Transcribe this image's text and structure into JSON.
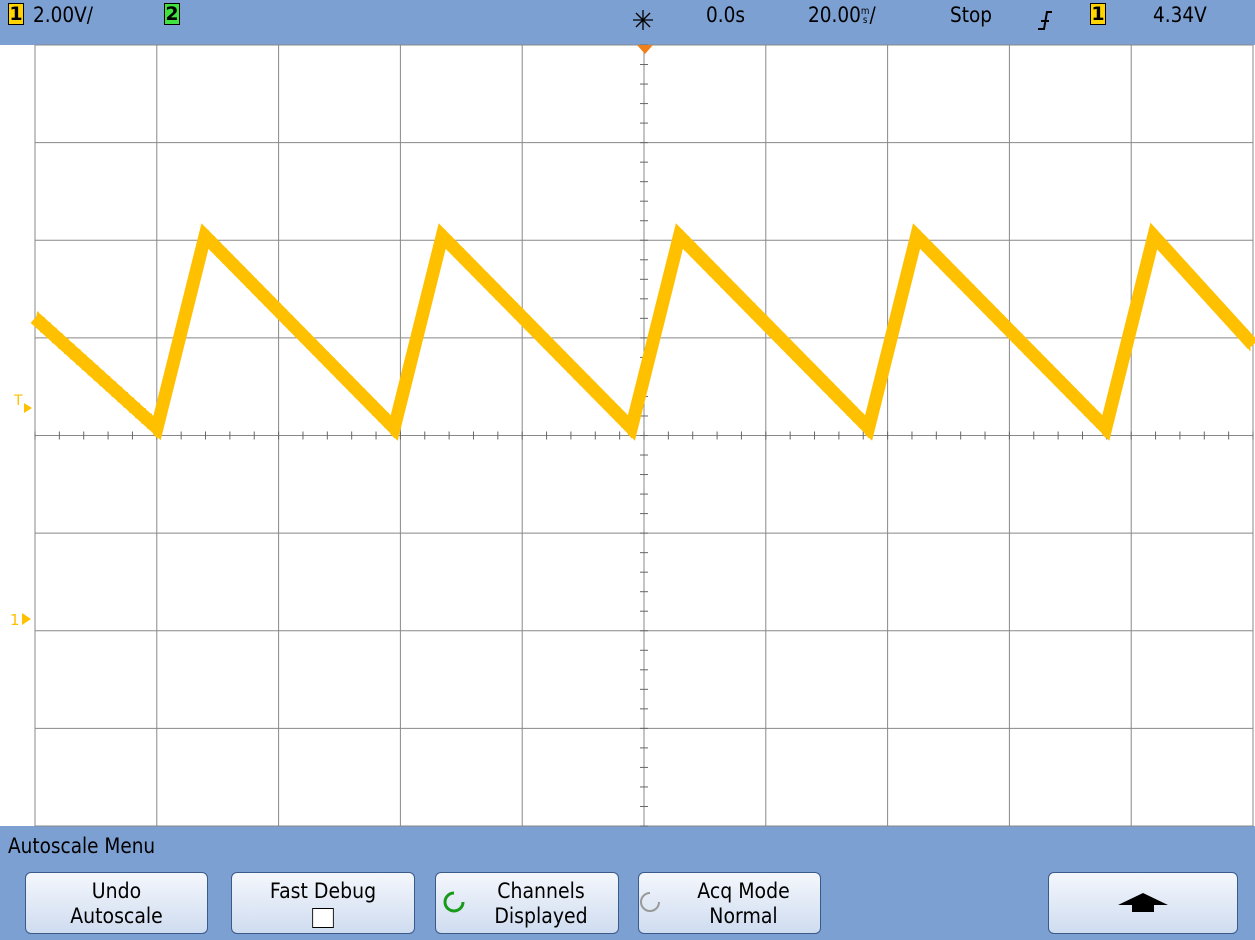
{
  "header": {
    "ch1_label": "1",
    "ch1_scale": "2.00V/",
    "ch2_label": "2",
    "time_ref": "0.0s",
    "timebase": "20.00",
    "timebase_unit_top": "m",
    "timebase_unit_bottom": "s",
    "timebase_suffix": "/",
    "run_state": "Stop",
    "trigger_channel": "1",
    "trigger_level": "4.34V"
  },
  "markers": {
    "trigger": "T",
    "ground": "1"
  },
  "menu": {
    "title": "Autoscale Menu",
    "buttons": [
      {
        "line1": "Undo",
        "line2": "Autoscale"
      },
      {
        "line1": "Fast Debug"
      },
      {
        "line1": "Channels",
        "line2": "Displayed"
      },
      {
        "line1": "Acq Mode",
        "line2": "Normal"
      }
    ]
  }
}
